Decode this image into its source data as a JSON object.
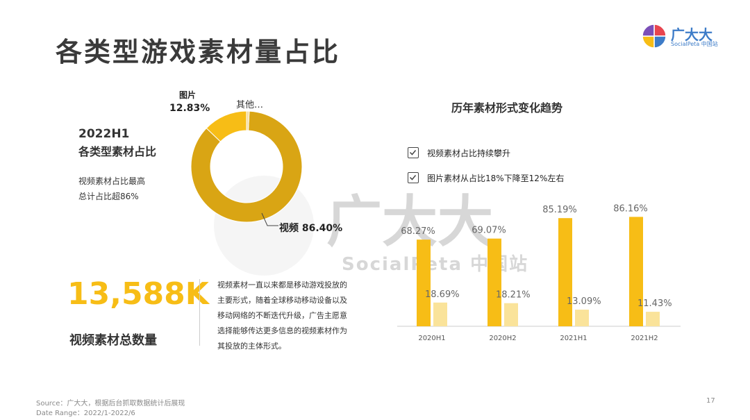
{
  "page": {
    "title": "各类型游戏素材量占比",
    "page_number": "17"
  },
  "logo": {
    "name": "广大大",
    "subtitle": "SocialPeta 中国站",
    "colors": [
      "#e8454f",
      "#3d7cc8",
      "#f7bd16",
      "#7b4fb8"
    ]
  },
  "watermark": {
    "text": "广大大",
    "subtitle": "SocialPeta 中国站"
  },
  "summary": {
    "period": "2022H1",
    "heading": "各类型素材占比",
    "note_line1": "视频素材占比最高",
    "note_line2": "总计占比超86%"
  },
  "donut": {
    "image_label": "图片",
    "image_value": "12.83%",
    "other_label": "其他…",
    "video_label": "视频 86.40%",
    "shares": [
      86.4,
      12.83,
      0.77
    ],
    "colors": [
      "#d9a514",
      "#f7bd16",
      "#f3dba0"
    ]
  },
  "stat": {
    "value": "13,588K",
    "label": "视频素材总数量",
    "description": "视频素材一直以来都是移动游戏投放的主要形式，随着全球移动移动设备以及移动网络的不断迭代升级，广告主愿意选择能够传达更多信息的视频素材作为其投放的主体形式。"
  },
  "trend": {
    "title": "历年素材形式变化趋势",
    "check1": "视频素材占比持续攀升",
    "check2": "图片素材从占比18%下降至12%左右"
  },
  "chart_data": {
    "type": "bar",
    "categories": [
      "2020H1",
      "2020H2",
      "2021H1",
      "2021H2"
    ],
    "series": [
      {
        "values": [
          68.27,
          69.07,
          85.19,
          86.16
        ],
        "labels": [
          "68.27%",
          "69.07%",
          "85.19%",
          "86.16%"
        ],
        "color": "#f7bd16"
      },
      {
        "values": [
          18.69,
          18.21,
          13.09,
          11.43
        ],
        "labels": [
          "18.69%",
          "18.21%",
          "13.09%",
          "11.43%"
        ],
        "color": "#fae39a"
      }
    ],
    "ylim": [
      0,
      100
    ],
    "grid": false
  },
  "footer": {
    "source": "Source：广大大，根据后台抓取数据统计后展现",
    "date_range": "Date Range：2022/1-2022/6"
  }
}
